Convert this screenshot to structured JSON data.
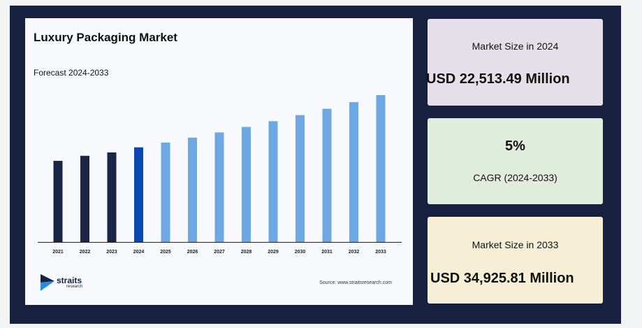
{
  "chart_data": {
    "type": "bar",
    "title": "Luxury Packaging Market",
    "subtitle": "Forecast 2024-2033",
    "categories": [
      "2021",
      "2022",
      "2023",
      "2024",
      "2025",
      "2026",
      "2027",
      "2028",
      "2029",
      "2030",
      "2031",
      "2032",
      "2033"
    ],
    "values": [
      19.3,
      20.5,
      21.3,
      22.51,
      23.64,
      24.82,
      26.06,
      27.36,
      28.73,
      30.17,
      31.68,
      33.26,
      34.93
    ],
    "value_unit": "USD Million (thousands)",
    "bar_colors": [
      "#1b2545",
      "#1b2545",
      "#1b2545",
      "#0b47b0",
      "#6ea8e3",
      "#6ea8e3",
      "#6ea8e3",
      "#6ea8e3",
      "#6ea8e3",
      "#6ea8e3",
      "#6ea8e3",
      "#6ea8e3",
      "#6ea8e3"
    ],
    "grid": false,
    "legend": "none"
  },
  "branding": {
    "logo_name": "straits",
    "logo_sub": "research",
    "source": "Source: www.straitsresearch.com"
  },
  "stats": {
    "size_2024": {
      "label": "Market Size in 2024",
      "value": "USD 22,513.49 Million"
    },
    "cagr": {
      "value": "5%",
      "label": "CAGR (2024-2033)"
    },
    "size_2033": {
      "label": "Market Size in 2033",
      "value": "USD 34,925.81 Million"
    }
  },
  "colors": {
    "frame": "#17213f",
    "card_2024": "#e5dfea",
    "card_cagr": "#e0ecdc",
    "card_2033": "#f6efd5",
    "logo_accent": "#2a8be0"
  }
}
